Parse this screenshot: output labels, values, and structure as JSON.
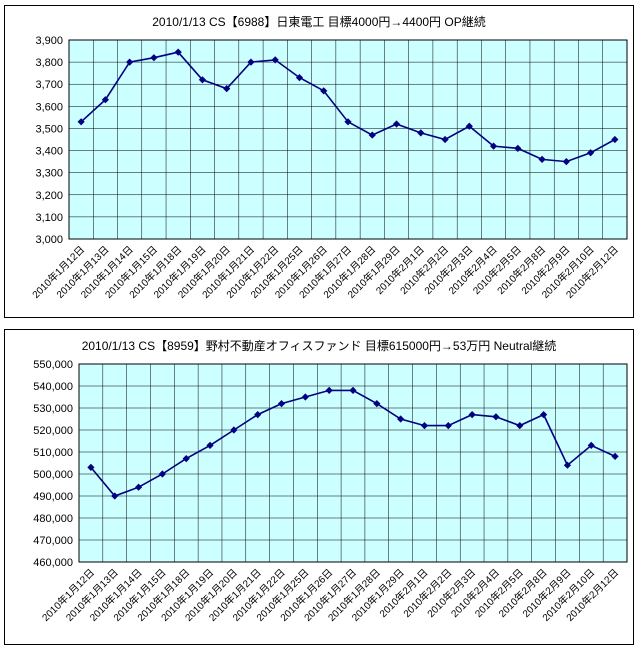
{
  "chart_data": [
    {
      "type": "line",
      "title": "2010/1/13 CS【6988】日東電工 目標4000円→4400円 OP継続",
      "categories": [
        "2010年1月12日",
        "2010年1月13日",
        "2010年1月14日",
        "2010年1月15日",
        "2010年1月18日",
        "2010年1月19日",
        "2010年1月20日",
        "2010年1月21日",
        "2010年1月22日",
        "2010年1月25日",
        "2010年1月26日",
        "2010年1月27日",
        "2010年1月28日",
        "2010年1月29日",
        "2010年2月1日",
        "2010年2月2日",
        "2010年2月3日",
        "2010年2月4日",
        "2010年2月5日",
        "2010年2月8日",
        "2010年2月9日",
        "2010年2月10日",
        "2010年2月12日"
      ],
      "series": [
        {
          "name": "日東電工 (6988)",
          "values": [
            3530,
            3630,
            3800,
            3820,
            3845,
            3720,
            3680,
            3800,
            3810,
            3730,
            3670,
            3530,
            3470,
            3520,
            3480,
            3450,
            3510,
            3420,
            3410,
            3360,
            3350,
            3390,
            3450
          ]
        }
      ],
      "ylim": [
        3000,
        3900
      ],
      "ytick_interval": 100,
      "xlabel": "",
      "ylabel": "",
      "grid": true,
      "legend_position": "none",
      "plot_bg_color": "#CCFFFF",
      "line_color": "#000080",
      "grid_color": "#000000",
      "marker": "diamond"
    },
    {
      "type": "line",
      "title": "2010/1/13 CS【8959】野村不動産オフィスファンド 目標615000円→53万円 Neutral継続",
      "categories": [
        "2010年1月12日",
        "2010年1月13日",
        "2010年1月14日",
        "2010年1月15日",
        "2010年1月18日",
        "2010年1月19日",
        "2010年1月20日",
        "2010年1月21日",
        "2010年1月22日",
        "2010年1月25日",
        "2010年1月26日",
        "2010年1月27日",
        "2010年1月28日",
        "2010年1月29日",
        "2010年2月1日",
        "2010年2月2日",
        "2010年2月3日",
        "2010年2月4日",
        "2010年2月5日",
        "2010年2月8日",
        "2010年2月9日",
        "2010年2月10日",
        "2010年2月12日"
      ],
      "series": [
        {
          "name": "野村不動産オフィスファンド (8959)",
          "values": [
            503000,
            490000,
            494000,
            500000,
            507000,
            513000,
            520000,
            527000,
            532000,
            535000,
            538000,
            538000,
            532000,
            525000,
            522000,
            522000,
            527000,
            526000,
            522000,
            527000,
            504000,
            513000,
            508000
          ]
        }
      ],
      "ylim": [
        460000,
        550000
      ],
      "ytick_interval": 10000,
      "xlabel": "",
      "ylabel": "",
      "grid": true,
      "legend_position": "none",
      "plot_bg_color": "#CCFFFF",
      "line_color": "#000080",
      "grid_color": "#000000",
      "marker": "diamond"
    }
  ]
}
